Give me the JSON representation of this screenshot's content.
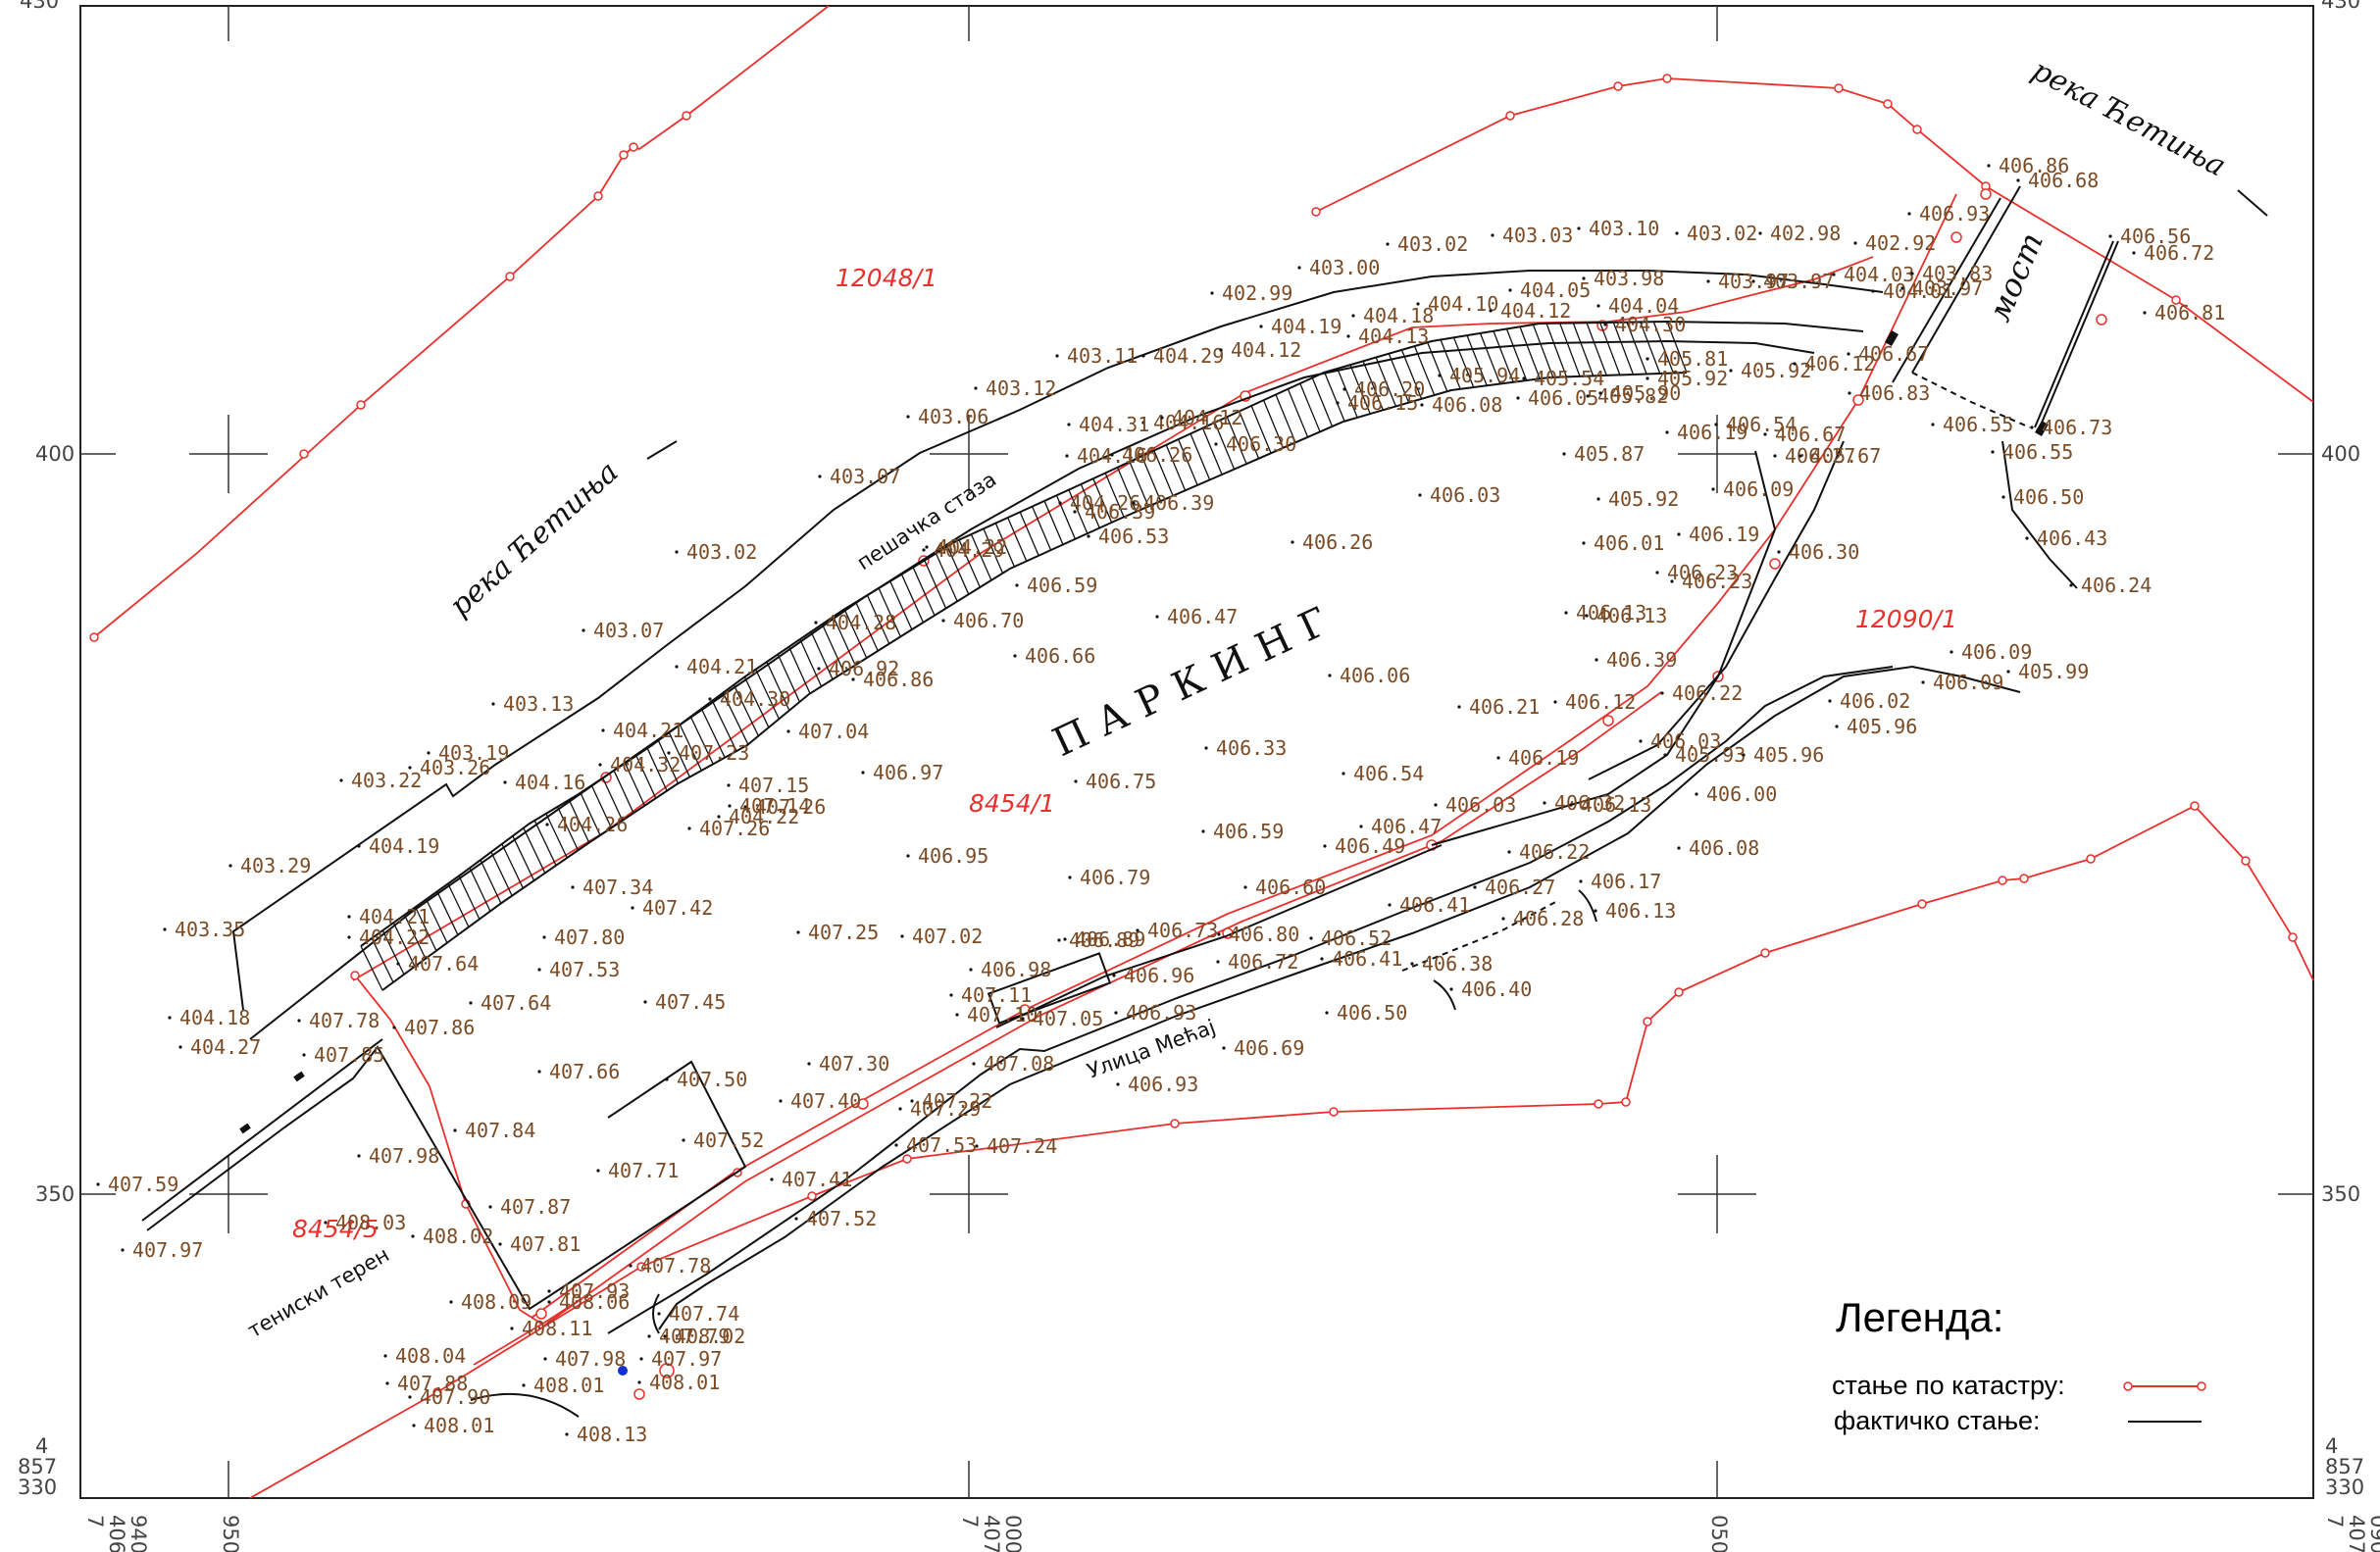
{
  "map": {
    "parking_label": "ПАРКИНГ",
    "river_labels": [
      "река Ћетиња",
      "река Ћетиња"
    ],
    "bridge_label": "мост",
    "street_label": "Улица Мећај",
    "path_label": "пешачка стаза",
    "tennis_label": "тениски терен",
    "parcels": [
      "12048/1",
      "8454/1",
      "8454/5",
      "12090/1"
    ],
    "coords": {
      "y430": "430",
      "y400": "400",
      "y350": "350",
      "y_bottom": [
        "4",
        "857",
        "330"
      ],
      "x_940": [
        "7",
        "406",
        "940"
      ],
      "x_950": "950",
      "x_000": [
        "7",
        "407",
        "000"
      ],
      "x_050": "050",
      "x_090": [
        "7",
        "407",
        "090"
      ]
    },
    "small_marker": "stepe",
    "elevations": [
      "403.35",
      "403.29",
      "403.22",
      "403.26",
      "403.19",
      "403.13",
      "403.07",
      "403.02",
      "403.07",
      "403.12",
      "403.06",
      "402.99",
      "403.11",
      "403.00",
      "403.02",
      "403.03",
      "403.10",
      "403.02",
      "402.98",
      "402.92",
      "406.93",
      "404.18",
      "404.27",
      "404.21",
      "404.22",
      "404.19",
      "404.16",
      "404.26",
      "404.21",
      "404.32",
      "404.22",
      "404.21",
      "404.30",
      "404.28",
      "404.22",
      "404.29",
      "404.29",
      "404.16",
      "404.16",
      "404.31",
      "404.26",
      "404.12",
      "404.12",
      "404.19",
      "404.13",
      "404.18",
      "404.10",
      "404.05",
      "404.12",
      "403.98",
      "404.04",
      "404.30",
      "403.97",
      "403.97",
      "404.03",
      "403.83",
      "404.01",
      "403.97",
      "407.78",
      "407.85",
      "407.86",
      "407.64",
      "407.34",
      "407.42",
      "407.80",
      "407.53",
      "407.23",
      "407.26",
      "407.15",
      "407.26",
      "407.14",
      "407.04",
      "406.92",
      "406.86",
      "406.89",
      "406.70",
      "406.59",
      "406.53",
      "406.39",
      "406.39",
      "406.26",
      "406.30",
      "406.15",
      "406.20",
      "406.08",
      "405.94",
      "406.05",
      "405.54",
      "405.82",
      "405.90",
      "405.81",
      "405.92",
      "405.92",
      "406.12",
      "406.83",
      "406.67",
      "406.54",
      "406.27",
      "406.19",
      "405.67",
      "406.09",
      "406.97",
      "406.75",
      "406.66",
      "406.47",
      "406.26",
      "406.03",
      "405.87",
      "405.92",
      "406.01",
      "406.19",
      "406.23",
      "406.23",
      "406.30",
      "406.13",
      "406.13",
      "406.06",
      "406.33",
      "406.54",
      "406.39",
      "406.12",
      "406.21",
      "406.19",
      "406.22",
      "406.03",
      "406.32",
      "406.47",
      "406.49",
      "406.13",
      "406.22",
      "406.27",
      "406.17",
      "406.13",
      "406.28",
      "406.41",
      "406.59",
      "406.60",
      "406.79",
      "406.80",
      "406.73",
      "406.52",
      "406.41",
      "406.38",
      "406.40",
      "406.95",
      "407.02",
      "406.89",
      "406.96",
      "406.72",
      "406.98",
      "407.11",
      "407.10",
      "407.05",
      "406.93",
      "406.50",
      "406.69",
      "406.93",
      "407.08",
      "407.25",
      "407.45",
      "407.50",
      "407.64",
      "407.66",
      "407.30",
      "407.40",
      "407.22",
      "407.29",
      "407.53",
      "407.24",
      "407.52",
      "407.41",
      "407.52",
      "407.71",
      "407.84",
      "407.98",
      "407.87",
      "407.81",
      "407.78",
      "408.02",
      "408.03",
      "407.59",
      "407.97",
      "408.09",
      "407.93",
      "408.06",
      "408.11",
      "407.74",
      "407.79",
      "408.02",
      "407.97",
      "407.98",
      "408.01",
      "408.01",
      "408.04",
      "407.88",
      "407.90",
      "408.01",
      "408.13",
      "406.86",
      "406.68",
      "406.56",
      "406.72",
      "406.81",
      "406.67",
      "406.55",
      "406.73",
      "406.55",
      "406.50",
      "406.43",
      "406.24",
      "406.09",
      "406.02",
      "406.09",
      "405.99",
      "405.96",
      "406.03",
      "405.93",
      "405.96",
      "406.00",
      "406.08"
    ]
  },
  "legend": {
    "title": "Легенда:",
    "cadastre_label": "стање по катастру:",
    "actual_label": "фактичко стање:",
    "colors": {
      "cadastre": "#e8302c",
      "actual": "#111111"
    }
  }
}
